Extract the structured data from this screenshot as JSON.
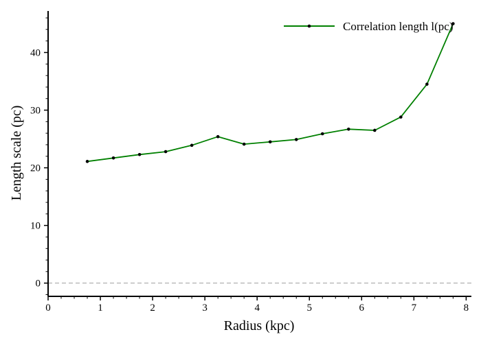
{
  "chart_data": {
    "type": "line",
    "xlabel": "Radius (kpc)",
    "ylabel": "Length scale (pc)",
    "xlim": [
      0,
      8.1
    ],
    "ylim": [
      -2.3,
      47.2
    ],
    "x_ticks": [
      "0",
      "1",
      "2",
      "3",
      "4",
      "5",
      "6",
      "7",
      "8"
    ],
    "y_ticks": [
      "0",
      "10",
      "20",
      "30",
      "40"
    ],
    "grid": false,
    "reference_line": {
      "y": 0,
      "style": "dashed",
      "color": "#bbbbbb"
    },
    "legend": {
      "position": "top-right"
    },
    "series": [
      {
        "name": "Correlation length l(pc)",
        "color": "#008000",
        "marker": "dot",
        "x": [
          0.75,
          1.25,
          1.75,
          2.25,
          2.75,
          3.25,
          3.75,
          4.25,
          4.75,
          5.25,
          5.75,
          6.25,
          6.75,
          7.25,
          7.75
        ],
        "y": [
          21.1,
          21.7,
          22.3,
          22.8,
          23.9,
          25.4,
          24.1,
          24.5,
          24.9,
          25.9,
          26.7,
          26.5,
          28.8,
          34.5,
          45.0
        ]
      }
    ]
  }
}
